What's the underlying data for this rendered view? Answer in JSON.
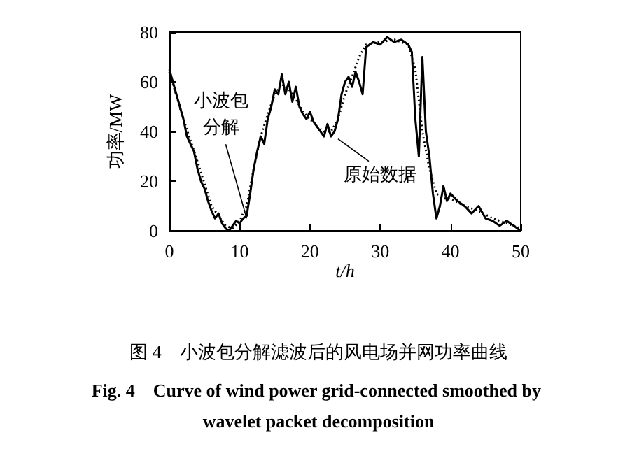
{
  "chart_data": {
    "type": "line",
    "title": "图 4　小波包分解滤波后的风电场并网功率曲线",
    "subtitle": "Fig. 4　Curve of wind power grid-connected smoothed by wavelet packet decomposition",
    "xlabel": "t/h",
    "ylabel": "功率/MW",
    "xlim": [
      0,
      50
    ],
    "ylim": [
      0,
      80
    ],
    "xticks": [
      0,
      10,
      20,
      30,
      40,
      50
    ],
    "yticks": [
      0,
      20,
      40,
      60,
      80
    ],
    "grid": false,
    "marker": "none",
    "series": [
      {
        "color": "#000000",
        "line_style": "solid",
        "x": [
          0,
          0.5,
          1,
          1.5,
          2,
          2.5,
          3,
          3.5,
          4,
          4.5,
          5,
          5.5,
          6,
          6.5,
          7,
          7.5,
          8,
          8.5,
          9,
          9.5,
          10,
          10.5,
          11,
          11.5,
          12,
          12.5,
          13,
          13.5,
          14,
          14.5,
          15,
          15.5,
          16,
          16.5,
          17,
          17.5,
          18,
          18.5,
          19,
          19.5,
          20,
          20.5,
          21,
          21.5,
          22,
          22.5,
          23,
          23.5,
          24,
          24.5,
          25,
          25.5,
          26,
          26.5,
          27,
          27.5,
          28,
          29,
          30,
          31,
          32,
          33,
          34,
          34.5,
          35,
          35.5,
          36,
          36.5,
          37,
          37.5,
          38,
          38.5,
          39,
          39.5,
          40,
          41,
          42,
          43,
          44,
          45,
          46,
          47,
          48,
          49,
          50
        ],
        "values": [
          65,
          60,
          55,
          50,
          45,
          38,
          35,
          32,
          25,
          20,
          17,
          12,
          8,
          5,
          7,
          3,
          1,
          0,
          2,
          4,
          3,
          5,
          6,
          15,
          25,
          32,
          38,
          35,
          45,
          50,
          57,
          55,
          63,
          55,
          60,
          52,
          58,
          50,
          47,
          45,
          48,
          44,
          42,
          40,
          38,
          43,
          38,
          40,
          45,
          55,
          60,
          62,
          58,
          64,
          60,
          55,
          74,
          76,
          75,
          78,
          76,
          77,
          75,
          72,
          45,
          30,
          70,
          40,
          30,
          15,
          5,
          10,
          18,
          12,
          15,
          12,
          10,
          7,
          10,
          5,
          4,
          2,
          4,
          2,
          0
        ]
      },
      {
        "color": "#000000",
        "line_style": "dotted",
        "x": [
          0,
          2,
          4,
          6,
          8,
          9,
          10,
          11,
          12,
          13,
          14,
          15,
          16,
          17,
          18,
          19,
          20,
          21,
          22,
          23,
          24,
          25,
          26,
          27,
          28,
          30,
          32,
          34,
          35,
          36,
          37,
          38,
          39,
          40,
          42,
          44,
          46,
          48,
          50
        ],
        "values": [
          64,
          45,
          28,
          10,
          2,
          1,
          4,
          10,
          25,
          38,
          47,
          55,
          59,
          57,
          53,
          48,
          45,
          42,
          40,
          40,
          45,
          55,
          62,
          70,
          75,
          76,
          77,
          75,
          65,
          40,
          25,
          15,
          13,
          13,
          10,
          8,
          5,
          3,
          1
        ]
      }
    ],
    "annotations": [
      {
        "text": "小波包分解",
        "x": 11,
        "y": 5
      },
      {
        "text": "原始数据",
        "x": 24,
        "y": 37
      }
    ]
  }
}
